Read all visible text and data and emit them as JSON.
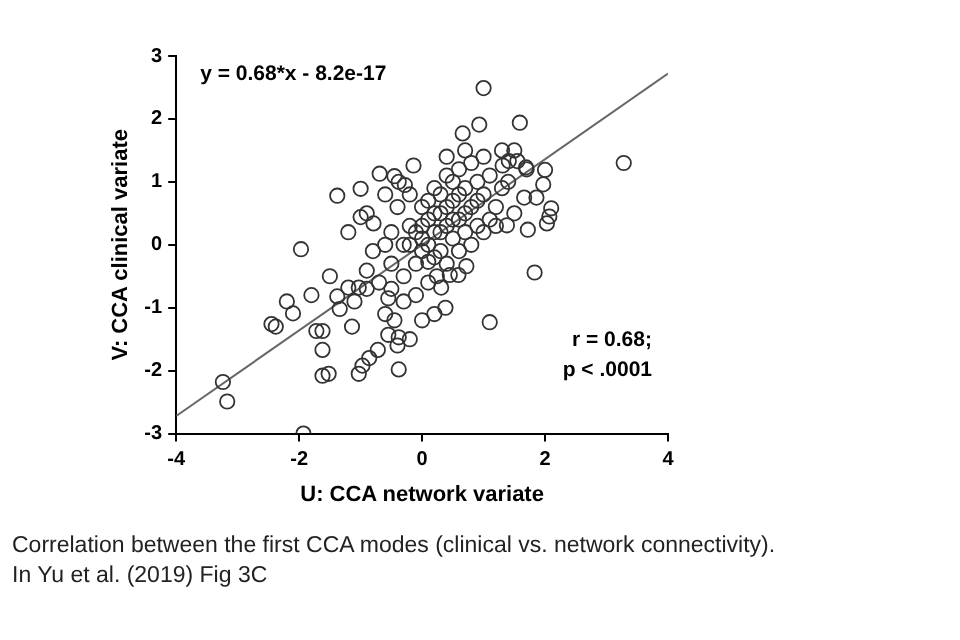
{
  "chart_data": {
    "type": "scatter",
    "xlabel": "U: CCA network variate",
    "ylabel": "V: CCA clinical variate",
    "xlim": [
      -4,
      4
    ],
    "xticks": [
      -4,
      -2,
      0,
      2,
      4
    ],
    "ylim": [
      -3,
      3
    ],
    "yticks": [
      -3,
      -2,
      -1,
      0,
      1,
      2,
      3
    ],
    "grid": false,
    "legend": false,
    "marker": "circle",
    "annotations": [
      "y = 0.68*x - 8.2e-17",
      "r = 0.68;\np < .0001",
      "Correlation between the first CCA modes (clinical vs. network connectivity).",
      "In Yu et al. (2019) Fig 3C"
    ],
    "series": [
      {
        "color": "#333333",
        "x": [
          -3.24,
          -3.17,
          -1.93,
          -1.97,
          -2.45,
          -2.38,
          -2.1,
          -1.72,
          -1.62,
          -1.62,
          -1.52,
          -1.62,
          -1.14,
          -1.34,
          -1.38,
          -1.03,
          -1.2,
          -0.9,
          -1.03,
          -0.97,
          -0.86,
          -0.72,
          -0.55,
          -0.38,
          -0.38,
          -0.45,
          -0.55,
          0.1,
          0.24,
          0.31,
          0.45,
          0.59,
          0.72,
          0,
          0.38,
          1.1,
          1.83,
          1.0,
          0.93,
          1.59,
          0.66,
          3.28,
          1.31,
          1.41,
          1.55,
          1.69,
          2.0,
          1.97,
          2.1,
          2.03,
          2.07,
          1.38,
          1.72,
          1.66,
          1.86,
          -1.38,
          -1.0,
          -0.69,
          -0.45,
          -0.38,
          -0.14,
          -0.28,
          -1.0,
          -0.79,
          -0.5,
          -0.3,
          -0.2,
          0,
          0.1,
          0.2,
          0.3,
          0.4,
          0.5,
          0.6,
          0.7,
          0.8,
          0.9,
          1.0,
          1.1,
          1.2,
          0.3,
          0.5,
          0.7,
          0.9,
          -0.1,
          -0.3,
          -0.5,
          -0.7,
          -0.6,
          -0.8,
          -0.4,
          -0.2,
          0,
          0.2,
          0.4,
          0.6,
          0.8,
          1.0,
          -0.1,
          0.1,
          -0.3,
          -0.5,
          0.4,
          0.6,
          0.8,
          1.0,
          1.2,
          1.3,
          1.4,
          1.5,
          0.2,
          0,
          -0.1,
          0.1,
          0.3,
          0.5,
          0.7,
          0.9,
          1.1,
          -0.9,
          -1.1,
          -0.2,
          -0.4,
          0.2,
          -0.6,
          -0.9,
          -1.2,
          -1.5,
          -1.8,
          -2.2,
          0.6,
          0.4,
          0.2,
          0,
          -0.2,
          0.1,
          0.3,
          0.5,
          0.7,
          0.4,
          -0.6,
          1.3,
          1.5,
          1.7
        ],
        "values": [
          -2.18,
          -2.49,
          -3.0,
          -0.07,
          -1.26,
          -1.3,
          -1.09,
          -1.37,
          -1.37,
          -2.08,
          -2.05,
          -1.67,
          -1.3,
          -1.02,
          -0.82,
          -0.68,
          -0.68,
          -0.41,
          -2.05,
          -1.92,
          -1.8,
          -1.67,
          -1.43,
          -1.47,
          -1.98,
          -1.2,
          -0.85,
          -0.27,
          -0.5,
          -0.68,
          -0.48,
          -0.48,
          -0.34,
          -1.2,
          -1.0,
          -1.23,
          -0.44,
          2.49,
          1.91,
          1.94,
          1.77,
          1.3,
          1.26,
          1.33,
          1.33,
          1.23,
          1.19,
          0.96,
          0.58,
          0.34,
          0.45,
          0.31,
          0.24,
          0.75,
          0.75,
          0.78,
          0.89,
          1.13,
          1.09,
          1.0,
          1.26,
          0.95,
          0.44,
          0.34,
          0.2,
          0.0,
          0.3,
          0.1,
          0.4,
          0.2,
          0.5,
          0.3,
          0.7,
          0.4,
          0.9,
          0.6,
          1.0,
          0.8,
          1.1,
          0.6,
          -0.1,
          0.1,
          0.2,
          0.3,
          -0.3,
          -0.5,
          -0.3,
          -0.6,
          0.0,
          -0.1,
          0.6,
          0.8,
          0.6,
          0.9,
          1.1,
          1.2,
          1.3,
          1.4,
          -0.8,
          -0.6,
          -0.9,
          -0.7,
          -0.3,
          -0.1,
          0.0,
          0.2,
          0.3,
          0.9,
          1.0,
          0.5,
          -0.2,
          -0.1,
          0.2,
          0.0,
          0.2,
          0.4,
          0.5,
          0.7,
          0.4,
          -0.7,
          -0.9,
          -1.5,
          -1.6,
          -1.1,
          -1.1,
          0.5,
          0.2,
          -0.5,
          -0.8,
          -0.9,
          0.8,
          0.6,
          0.5,
          0.3,
          0.0,
          0.7,
          0.8,
          1.0,
          1.5,
          1.4,
          0.8,
          1.5,
          1.5,
          1.2
        ]
      },
      {
        "type": "line",
        "color": "#666666",
        "marker": "none",
        "x": [
          -4,
          4
        ],
        "values": [
          -2.72,
          2.72
        ]
      }
    ]
  }
}
